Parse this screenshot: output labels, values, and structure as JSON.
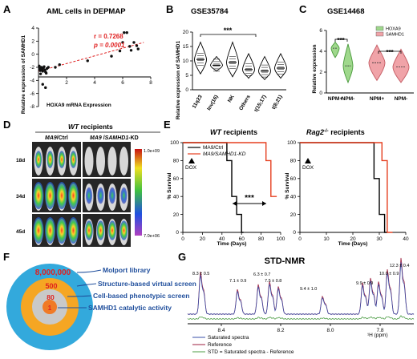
{
  "panels": {
    "A": {
      "label": "A",
      "title": "AML cells in DEPMAP",
      "r_text": "r = 0.7268",
      "p_text": "p = 0.0001",
      "stat_color": "#e02020",
      "xlabel": "HOXA9 mRNA Expression",
      "ylabel": "Relative expression of SAMHD1"
    },
    "B": {
      "label": "B",
      "title": "GSE35784",
      "ylabel": "Relative expression of SAMHD1",
      "sig": "***"
    },
    "C": {
      "label": "C",
      "title": "GSE14468",
      "ylabel": "Relative expression",
      "sig1": "***",
      "sig2": "***"
    },
    "D": {
      "label": "D",
      "title_italic": "WT",
      "title_rest": " recipients",
      "col1_italic": "MA9",
      "col1_rest": "/Ctrl",
      "col2_italic": "MA9",
      "col2_mid": " /",
      "col2_italic2": "SAMHD1",
      "col2_rest": "-KD",
      "rows": [
        "18d",
        "34d",
        "45d"
      ],
      "colorbar_top": "1.0e+09",
      "colorbar_bottom": "7.0e+06"
    },
    "E": {
      "label": "E",
      "title1_italic": "WT",
      "title1_rest": " recipients",
      "title2_italic": "Rag2",
      "title2_sup": "-/-",
      "title2_rest": " recipients",
      "legend": [
        "MA9/Ctrl",
        "MA9/SAMHD1-KD"
      ],
      "dox": "DOX",
      "sig": "***",
      "xlabel": "Time (Days)",
      "ylabel": "% Survival",
      "ctrl_color": "#000000",
      "kd_color": "#e53e1e"
    },
    "F": {
      "label": "F",
      "rings": [
        {
          "value": "8,000,000",
          "text": "Molport library"
        },
        {
          "value": "500",
          "text": "Structure-based virtual screen"
        },
        {
          "value": "80",
          "text": "Cell-based phenotypic screen"
        },
        {
          "value": "1",
          "text": "SAMHD1 catalytic activity"
        }
      ],
      "ring_colors": [
        "#33a9dc",
        "#f5a623",
        "#c9c9c9",
        "#f07a26"
      ]
    },
    "G": {
      "label": "G",
      "title": "STD-NMR",
      "peaks": [
        "8.3 ± 0.5",
        "7.1 ± 0.9",
        "6.3 ± 0.7",
        "7.5 ± 0.8",
        "9.4 ± 1.0",
        "9.9 ± 0.9",
        "10.0 ± 0.9",
        "12.3 ± 0.4"
      ],
      "xticks": [
        "8.4",
        "8.2",
        "8.0",
        "7.8"
      ],
      "xunit": "¹H (ppm)",
      "legend": [
        "Saturated spectra",
        "Reference",
        "STD = Saturated spectra - Reference"
      ],
      "colors": {
        "saturated": "#3a4fa8",
        "reference": "#9c1f3f",
        "std": "#4c9c44"
      }
    }
  },
  "chart_data": [
    {
      "type": "scatter",
      "panel": "A",
      "title": "AML cells in DEPMAP",
      "xlabel": "HOXA9 mRNA Expression",
      "ylabel": "Relative expression of SAMHD1",
      "xlim": [
        0,
        8
      ],
      "ylim": [
        -8,
        4
      ],
      "xticks": [
        2,
        4,
        6,
        8
      ],
      "yticks": [
        -8,
        -6,
        -4,
        -2,
        0,
        2,
        4
      ],
      "x": [
        0.05,
        0.1,
        0.12,
        0.15,
        0.2,
        0.25,
        0.3,
        0.35,
        0.4,
        0.45,
        0.5,
        0.55,
        0.6,
        0.7,
        0.3,
        0.5,
        1.2,
        1.5,
        3.5,
        5.2,
        5.8,
        6.0,
        6.1,
        6.3,
        6.5,
        6.6,
        6.8,
        7.0,
        7.1
      ],
      "y": [
        -1.8,
        -2.2,
        -2.5,
        -3.0,
        -2.0,
        -2.3,
        -2.6,
        -2.1,
        -1.9,
        -2.4,
        -2.7,
        -2.9,
        -2.2,
        -2.0,
        -4.6,
        -5.1,
        -2.0,
        -1.6,
        -1.0,
        -0.3,
        0.5,
        1.8,
        3.3,
        3.3,
        1.2,
        0.6,
        1.8,
        1.3,
        0.8
      ],
      "fit": [
        [
          0,
          -2.6
        ],
        [
          7.5,
          1.8
        ]
      ]
    },
    {
      "type": "violin",
      "panel": "B",
      "title": "GSE35784",
      "ylabel": "Relative expression of SAMHD1",
      "categories": [
        "11q23",
        "Inv(16)",
        "NK",
        "Others",
        "t(15;17)",
        "t(8;21)"
      ],
      "category_colors": [
        "#e02020",
        "#000000",
        "#000000",
        "#000000",
        "#000000",
        "#000000"
      ],
      "ylim": [
        0,
        20
      ],
      "yticks": [
        0,
        5,
        10,
        15,
        20
      ],
      "median": [
        10.5,
        8.5,
        9.5,
        7.0,
        6.5,
        7.5
      ],
      "min": [
        5.5,
        6.5,
        4.5,
        4.0,
        3.5,
        4.0
      ],
      "max": [
        16.5,
        11.5,
        16.5,
        12.5,
        11.5,
        12.5
      ]
    },
    {
      "type": "violin",
      "panel": "C",
      "title": "GSE14468",
      "ylabel": "Relative expression",
      "categories": [
        "NPM+",
        "NPM-",
        "NPM+",
        "NPM-"
      ],
      "series": [
        {
          "name": "HOXA9",
          "color": "#9fd88c"
        },
        {
          "name": "SAMHD1",
          "color": "#f0a3a8"
        }
      ],
      "ylim": [
        0,
        6
      ],
      "yticks": [
        0,
        2,
        4,
        6
      ],
      "median": [
        4.3,
        2.6,
        2.9,
        2.5
      ],
      "min": [
        3.4,
        1.0,
        1.2,
        1.0
      ],
      "max": [
        4.9,
        4.7,
        4.6,
        4.2
      ]
    },
    {
      "type": "line",
      "panel": "E1",
      "title": "WT recipients",
      "xlabel": "Time (Days)",
      "ylabel": "% Survival",
      "xlim": [
        0,
        100
      ],
      "ylim": [
        0,
        100
      ],
      "xticks": [
        0,
        20,
        40,
        60,
        80,
        100
      ],
      "yticks": [
        0,
        20,
        40,
        60,
        80,
        100
      ],
      "series": [
        {
          "name": "MA9/Ctrl",
          "steps": [
            [
              0,
              100
            ],
            [
              45,
              100
            ],
            [
              45,
              80
            ],
            [
              50,
              80
            ],
            [
              50,
              40
            ],
            [
              55,
              40
            ],
            [
              55,
              20
            ],
            [
              60,
              20
            ],
            [
              60,
              0
            ],
            [
              62,
              0
            ]
          ]
        },
        {
          "name": "MA9/SAMHD1-KD",
          "steps": [
            [
              0,
              100
            ],
            [
              85,
              100
            ],
            [
              85,
              80
            ],
            [
              90,
              80
            ],
            [
              90,
              40
            ],
            [
              96,
              40
            ]
          ]
        }
      ]
    },
    {
      "type": "line",
      "panel": "E2",
      "title": "Rag2-/- recipients",
      "xlabel": "Time (Days)",
      "ylabel": "% Survival",
      "xlim": [
        0,
        40
      ],
      "ylim": [
        0,
        100
      ],
      "xticks": [
        0,
        10,
        20,
        30,
        40
      ],
      "yticks": [
        0,
        20,
        40,
        60,
        80,
        100
      ],
      "series": [
        {
          "name": "MA9/Ctrl",
          "steps": [
            [
              0,
              100
            ],
            [
              28,
              100
            ],
            [
              28,
              60
            ],
            [
              30,
              60
            ],
            [
              30,
              20
            ],
            [
              32,
              20
            ],
            [
              32,
              0
            ],
            [
              33,
              0
            ]
          ]
        },
        {
          "name": "MA9/SAMHD1-KD",
          "steps": [
            [
              0,
              100
            ],
            [
              31,
              100
            ],
            [
              31,
              80
            ],
            [
              33,
              80
            ],
            [
              33,
              0
            ],
            [
              35,
              0
            ]
          ]
        }
      ]
    }
  ]
}
